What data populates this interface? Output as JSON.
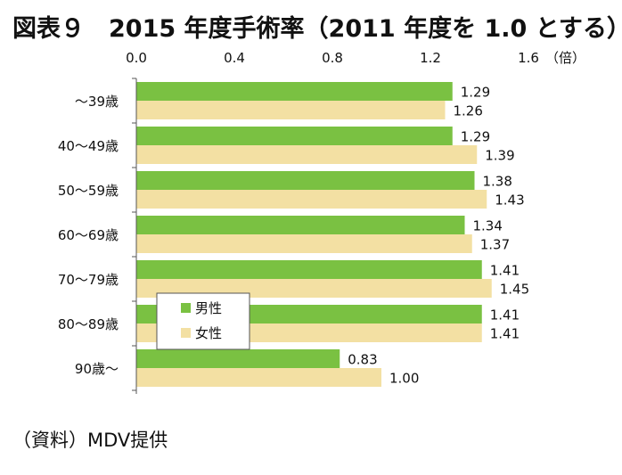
{
  "title": "図表９　2015 年度手術率（2011 年度を 1.0 とする）",
  "source": "（資料）MDV提供",
  "colors": {
    "male": "#7ac142",
    "female": "#f3e0a3",
    "axis": "#555555"
  },
  "chart_data": {
    "type": "bar",
    "orientation": "horizontal",
    "title": "図表９　2015 年度手術率（2011 年度を 1.0 とする）",
    "unit_label": "（倍）",
    "xlim": [
      0,
      1.6
    ],
    "ticks": [
      "0.0",
      "0.4",
      "0.8",
      "1.2",
      "1.6"
    ],
    "tick_values": [
      0,
      0.4,
      0.8,
      1.2,
      1.6
    ],
    "categories": [
      "～39歳",
      "40～49歳",
      "50～59歳",
      "60～69歳",
      "70～79歳",
      "80～89歳",
      "90歳～"
    ],
    "series": [
      {
        "name": "男性",
        "values": [
          1.29,
          1.29,
          1.38,
          1.34,
          1.41,
          1.41,
          0.83
        ],
        "labels": [
          "1.29",
          "1.29",
          "1.38",
          "1.34",
          "1.41",
          "1.41",
          "0.83"
        ]
      },
      {
        "name": "女性",
        "values": [
          1.26,
          1.39,
          1.43,
          1.37,
          1.45,
          1.41,
          1.0
        ],
        "labels": [
          "1.26",
          "1.39",
          "1.43",
          "1.37",
          "1.45",
          "1.41",
          "1.00"
        ]
      }
    ],
    "legend": {
      "position": "inside-lower-left",
      "items": [
        "男性",
        "女性"
      ]
    },
    "grid": false
  }
}
